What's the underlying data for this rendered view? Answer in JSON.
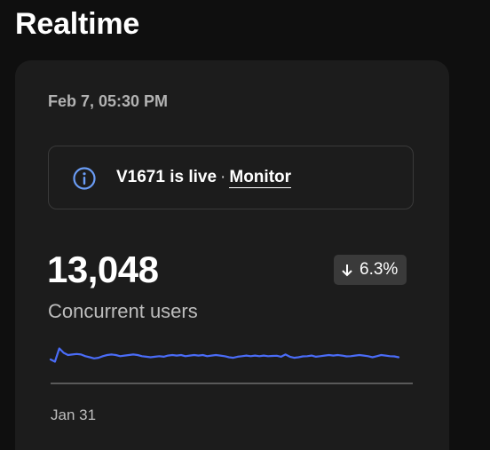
{
  "page": {
    "title": "Realtime"
  },
  "card": {
    "timestamp": "Feb 7, 05:30 PM",
    "notice": {
      "icon": "info-icon",
      "version_text": "V1671 is live",
      "separator": "·",
      "link_label": "Monitor"
    },
    "metric": {
      "value": "13,048",
      "label": "Concurrent users",
      "change": {
        "direction": "down",
        "icon": "arrow-down-icon",
        "text": "6.3%"
      }
    },
    "x_axis_start_label": "Jan 31"
  },
  "colors": {
    "background": "#0f0f0f",
    "card": "#1c1c1c",
    "accent_line": "#4a6cf7",
    "info_icon": "#6a9cf5",
    "badge": "#3a3a3a"
  },
  "chart_data": {
    "type": "line",
    "series": [
      {
        "values": [
          20,
          18,
          30,
          26,
          24,
          24.5,
          25,
          24.5,
          23,
          22,
          21,
          21.5,
          23,
          24,
          24.5,
          24,
          23,
          23.5,
          24,
          24.5,
          24,
          23,
          22.5,
          22,
          22.5,
          23,
          22.5,
          23.5,
          24,
          23.5,
          24,
          23,
          23.5,
          24,
          23.5,
          24,
          23,
          23.5,
          24,
          23.5,
          23,
          22,
          21.5,
          22.5,
          23,
          23.5,
          23,
          23.5,
          23,
          23.5,
          23,
          23.2,
          23.4,
          22.5,
          24.5,
          22.5,
          21.5,
          22,
          22.8,
          23,
          23.5,
          22.5,
          23,
          23.5,
          24,
          23.5,
          24,
          23.5,
          22.8,
          23,
          23.5,
          24,
          23.5,
          23,
          22,
          23,
          24,
          23.5,
          23,
          22.8,
          22
        ]
      }
    ]
  }
}
